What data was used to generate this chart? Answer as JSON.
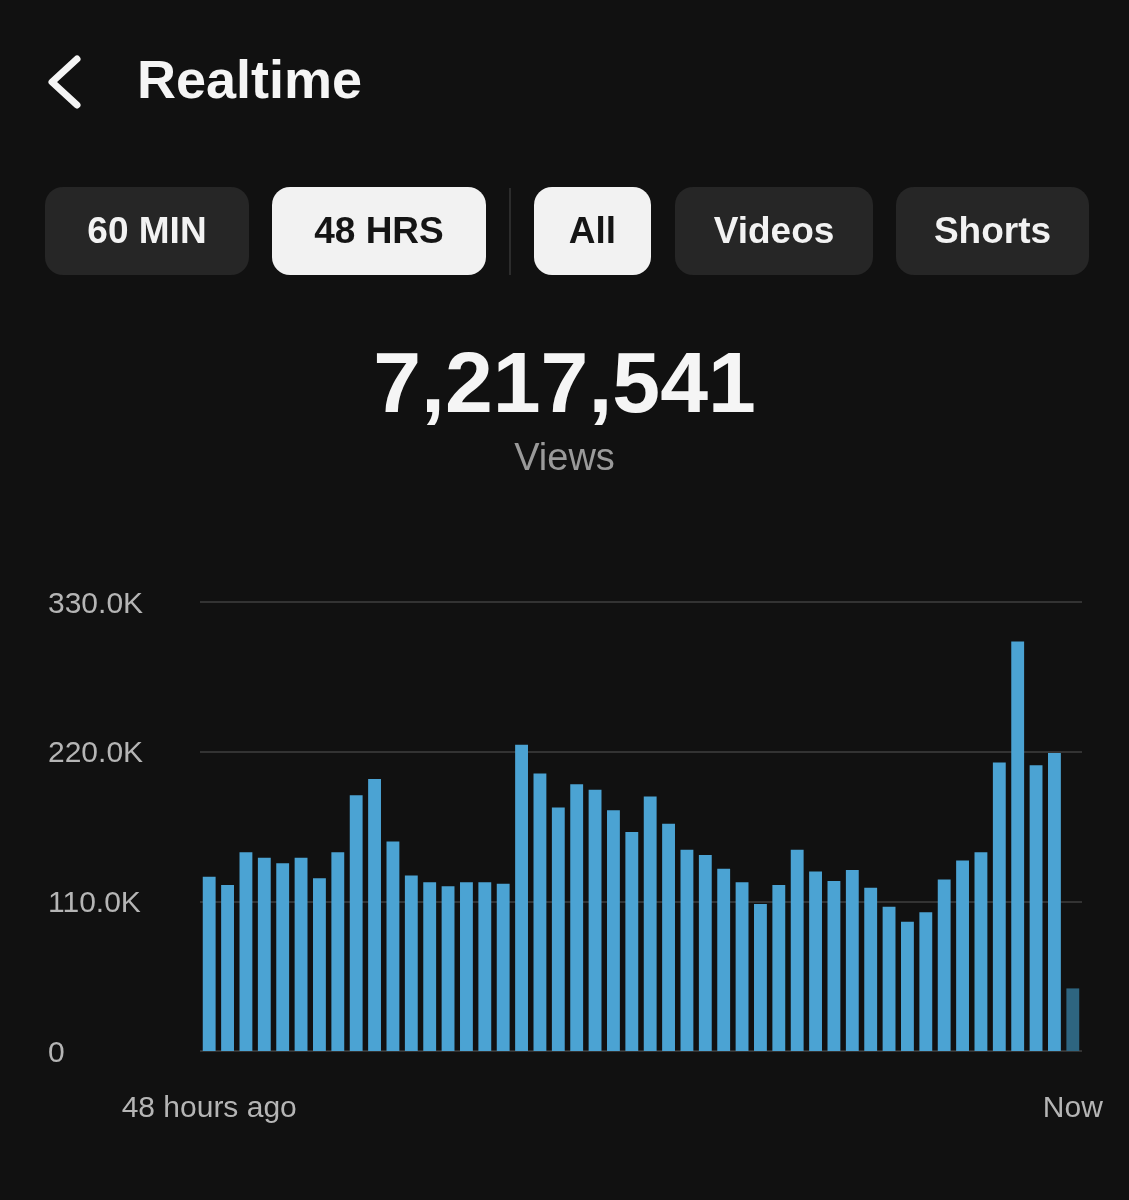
{
  "chart_data": {
    "type": "bar",
    "title": "Realtime",
    "annotations": [
      "60 MIN",
      "48 HRS",
      "All",
      "Videos",
      "Shorts",
      "7,217,541",
      "Views"
    ],
    "categories": [
      "48 hours ago",
      null,
      null,
      null,
      null,
      null,
      null,
      null,
      null,
      null,
      null,
      null,
      null,
      null,
      null,
      null,
      null,
      null,
      null,
      null,
      null,
      null,
      null,
      null,
      null,
      null,
      null,
      null,
      null,
      null,
      null,
      null,
      null,
      null,
      null,
      null,
      null,
      null,
      null,
      null,
      null,
      null,
      null,
      null,
      null,
      null,
      null,
      "Now"
    ],
    "values": [
      128000,
      122000,
      146000,
      142000,
      138000,
      142000,
      127000,
      146000,
      188000,
      200000,
      154000,
      129000,
      124000,
      121000,
      124000,
      124000,
      123000,
      225000,
      204000,
      179000,
      196000,
      192000,
      177000,
      161000,
      187000,
      167000,
      148000,
      144000,
      134000,
      124000,
      108000,
      122000,
      148000,
      132000,
      125000,
      133000,
      120000,
      106000,
      95000,
      102000,
      126000,
      140000,
      146000,
      212000,
      301000,
      210000,
      219000,
      46000
    ],
    "colors": [
      "#4ba3d3",
      "#4ba3d3",
      "#4ba3d3",
      "#4ba3d3",
      "#4ba3d3",
      "#4ba3d3",
      "#4ba3d3",
      "#4ba3d3",
      "#4ba3d3",
      "#4ba3d3",
      "#4ba3d3",
      "#4ba3d3",
      "#4ba3d3",
      "#4ba3d3",
      "#4ba3d3",
      "#4ba3d3",
      "#4ba3d3",
      "#4ba3d3",
      "#4ba3d3",
      "#4ba3d3",
      "#4ba3d3",
      "#4ba3d3",
      "#4ba3d3",
      "#4ba3d3",
      "#4ba3d3",
      "#4ba3d3",
      "#4ba3d3",
      "#4ba3d3",
      "#4ba3d3",
      "#4ba3d3",
      "#4ba3d3",
      "#4ba3d3",
      "#4ba3d3",
      "#4ba3d3",
      "#4ba3d3",
      "#4ba3d3",
      "#4ba3d3",
      "#4ba3d3",
      "#4ba3d3",
      "#4ba3d3",
      "#4ba3d3",
      "#4ba3d3",
      "#4ba3d3",
      "#4ba3d3",
      "#4ba3d3",
      "#4ba3d3",
      "#4ba3d3",
      "#2e6580"
    ],
    "ylim": [
      0,
      330000
    ],
    "yticks": [
      0,
      {
        "value": 110000,
        "label": "110.0K"
      },
      {
        "value": 220000,
        "label": "220.0K"
      },
      {
        "value": 330000,
        "label": "330.0K"
      }
    ],
    "grid": "y"
  }
}
